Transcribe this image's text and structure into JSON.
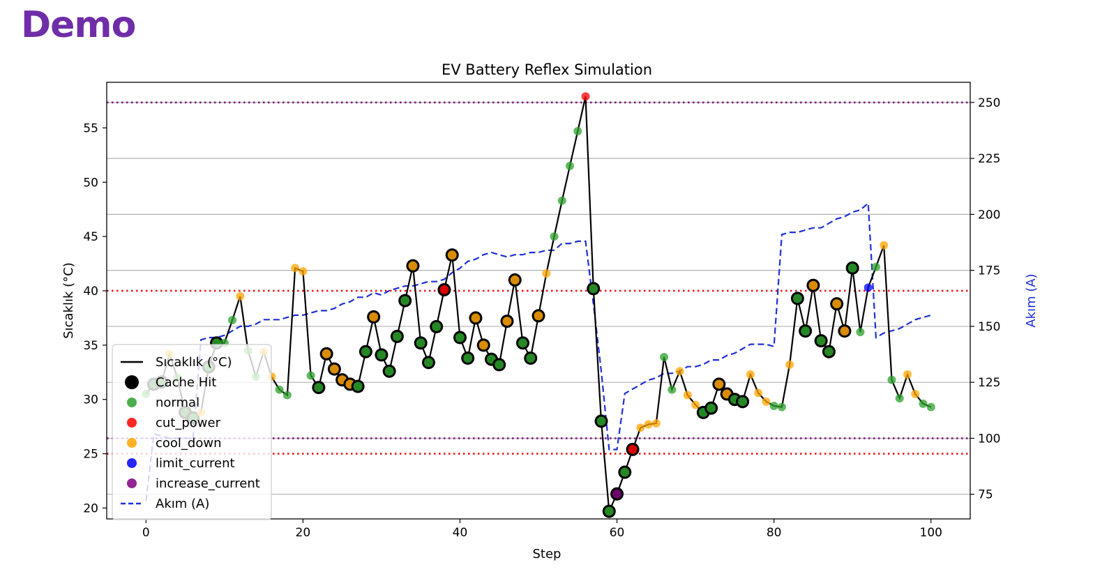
{
  "brand": {
    "logo_text": "Demo"
  },
  "chart_data": {
    "type": "line",
    "title": "EV Battery Reflex Simulation",
    "xlabel": "Step",
    "ylabel": "Sıcaklık (°C)",
    "y2label": "Akım (A)",
    "xlim": [
      -5,
      105
    ],
    "ylim": [
      19,
      59.2
    ],
    "y2lim": [
      64,
      259
    ],
    "xticks": [
      0,
      20,
      40,
      60,
      80,
      100
    ],
    "yticks": [
      20,
      25,
      30,
      35,
      40,
      45,
      50,
      55
    ],
    "y2ticks": [
      75,
      100,
      125,
      150,
      175,
      200,
      225,
      250
    ],
    "grid_y2": true,
    "legend_position": "lower-left",
    "temperature_hlines": [
      {
        "value": 40,
        "color": "#e8141a",
        "style": "dotted"
      },
      {
        "value": 25,
        "color": "#e8141a",
        "style": "dotted"
      }
    ],
    "current_hlines": [
      {
        "value": 250,
        "color": "#7a1a7a",
        "style": "dotted"
      },
      {
        "value": 100,
        "color": "#7a1a7a",
        "style": "dotted"
      }
    ],
    "temperature": {
      "name": "Sıcaklık (°C)",
      "x": [
        0,
        1,
        2,
        3,
        4,
        5,
        6,
        7,
        8,
        9,
        10,
        11,
        12,
        13,
        14,
        15,
        16,
        17,
        18,
        19,
        20,
        21,
        22,
        23,
        24,
        25,
        26,
        27,
        28,
        29,
        30,
        31,
        32,
        33,
        34,
        35,
        36,
        37,
        38,
        39,
        40,
        41,
        42,
        43,
        44,
        45,
        46,
        47,
        48,
        49,
        50,
        51,
        52,
        53,
        54,
        55,
        56,
        57,
        58,
        59,
        60,
        61,
        62,
        63,
        64,
        65,
        66,
        67,
        68,
        69,
        70,
        71,
        72,
        73,
        74,
        75,
        76,
        77,
        78,
        79,
        80,
        81,
        82,
        83,
        84,
        85,
        86,
        87,
        88,
        89,
        90,
        91,
        92,
        93,
        94,
        95,
        96,
        97,
        98,
        99,
        100
      ],
      "y": [
        30.5,
        31.4,
        31.6,
        34.2,
        32.0,
        28.8,
        28.3,
        28.8,
        33.0,
        35.2,
        35.2,
        37.3,
        39.5,
        34.5,
        32.1,
        34.4,
        32.1,
        30.9,
        30.4,
        42.1,
        41.8,
        32.2,
        31.1,
        34.2,
        32.8,
        31.8,
        31.4,
        31.2,
        34.4,
        37.6,
        34.1,
        32.6,
        35.8,
        39.1,
        42.3,
        35.2,
        33.4,
        36.7,
        40.1,
        43.3,
        35.7,
        33.8,
        37.5,
        35.0,
        33.7,
        33.2,
        37.2,
        41.0,
        35.2,
        33.8,
        37.7,
        41.6,
        45.0,
        48.3,
        51.5,
        54.7,
        57.9,
        40.2,
        28.0,
        19.7,
        21.3,
        23.3,
        25.4,
        27.4,
        27.7,
        27.8,
        33.9,
        30.9,
        32.6,
        30.4,
        29.5,
        28.8,
        29.2,
        31.4,
        30.5,
        30.0,
        29.8,
        32.3,
        30.6,
        29.8,
        29.4,
        29.3,
        33.2,
        39.3,
        36.3,
        40.5,
        35.4,
        34.4,
        38.8,
        36.3,
        42.1,
        36.2,
        40.3,
        42.2,
        44.2,
        31.8,
        30.1,
        32.3,
        30.5,
        29.6,
        29.3
      ]
    },
    "current": {
      "name": "Akım (A)",
      "x": [
        0,
        1,
        2,
        3,
        4,
        5,
        6,
        7,
        8,
        9,
        10,
        11,
        12,
        13,
        14,
        15,
        16,
        17,
        18,
        19,
        20,
        21,
        22,
        23,
        24,
        25,
        26,
        27,
        28,
        29,
        30,
        31,
        32,
        33,
        34,
        35,
        36,
        37,
        38,
        39,
        40,
        41,
        42,
        43,
        44,
        45,
        46,
        47,
        48,
        49,
        50,
        51,
        52,
        53,
        54,
        55,
        56,
        57,
        58,
        59,
        60,
        61,
        62,
        63,
        64,
        65,
        66,
        67,
        68,
        69,
        70,
        71,
        72,
        73,
        74,
        75,
        76,
        77,
        78,
        79,
        80,
        81,
        82,
        83,
        84,
        85,
        86,
        87,
        88,
        89,
        90,
        91,
        92,
        93,
        94,
        95,
        96,
        97,
        98,
        99,
        100
      ],
      "y": [
        72,
        102,
        101,
        100,
        100,
        100,
        100,
        144,
        145,
        145,
        146,
        148,
        150,
        150,
        151,
        153,
        153,
        153,
        154,
        155,
        155,
        156,
        157,
        157,
        158,
        160,
        161,
        163,
        163,
        165,
        164,
        166,
        167,
        168,
        168,
        169,
        170,
        170,
        171,
        174,
        176,
        179,
        180,
        182,
        183,
        182,
        181,
        182,
        182,
        183,
        183,
        184,
        184,
        187,
        187,
        188,
        188,
        160,
        130,
        95,
        95,
        120,
        122,
        124,
        126,
        127,
        129,
        129,
        130,
        132,
        132,
        133,
        135,
        135,
        137,
        138,
        140,
        142,
        142,
        142,
        141,
        191,
        192,
        192,
        193,
        194,
        194,
        196,
        198,
        199,
        201,
        202,
        205,
        145,
        147,
        148,
        149,
        151,
        153,
        154,
        155
      ]
    },
    "categories": [
      {
        "name": "normal",
        "color": "#2ca02c",
        "x": [
          0,
          4,
          10,
          11,
          13,
          14,
          17,
          18,
          21,
          52,
          53,
          54,
          55,
          66,
          67,
          80,
          81,
          91,
          93,
          95,
          96,
          99,
          100
        ]
      },
      {
        "name": "cut_power",
        "color": "#ff0000",
        "x": [
          56
        ]
      },
      {
        "name": "cool_down",
        "color": "#ffa500",
        "x": [
          3,
          7,
          12,
          15,
          16,
          19,
          20,
          51,
          63,
          64,
          65,
          68,
          69,
          70,
          77,
          78,
          79,
          82,
          94,
          97,
          98
        ]
      },
      {
        "name": "limit_current",
        "color": "#0000ff",
        "x": [
          92
        ]
      },
      {
        "name": "increase_current",
        "color": "#800080",
        "x": []
      }
    ],
    "cache_hits": {
      "name": "Cache Hit",
      "points": [
        {
          "x": 1,
          "cat": "normal"
        },
        {
          "x": 2,
          "cat": "normal"
        },
        {
          "x": 5,
          "cat": "normal"
        },
        {
          "x": 6,
          "cat": "normal"
        },
        {
          "x": 8,
          "cat": "normal"
        },
        {
          "x": 9,
          "cat": "normal"
        },
        {
          "x": 22,
          "cat": "normal"
        },
        {
          "x": 23,
          "cat": "cool_down"
        },
        {
          "x": 24,
          "cat": "cool_down"
        },
        {
          "x": 25,
          "cat": "cool_down"
        },
        {
          "x": 26,
          "cat": "cool_down"
        },
        {
          "x": 27,
          "cat": "normal"
        },
        {
          "x": 28,
          "cat": "normal"
        },
        {
          "x": 29,
          "cat": "cool_down"
        },
        {
          "x": 30,
          "cat": "normal"
        },
        {
          "x": 31,
          "cat": "normal"
        },
        {
          "x": 32,
          "cat": "normal"
        },
        {
          "x": 33,
          "cat": "normal"
        },
        {
          "x": 34,
          "cat": "cool_down"
        },
        {
          "x": 35,
          "cat": "normal"
        },
        {
          "x": 36,
          "cat": "normal"
        },
        {
          "x": 37,
          "cat": "normal"
        },
        {
          "x": 38,
          "cat": "cut_power"
        },
        {
          "x": 39,
          "cat": "cool_down"
        },
        {
          "x": 40,
          "cat": "normal"
        },
        {
          "x": 41,
          "cat": "normal"
        },
        {
          "x": 42,
          "cat": "cool_down"
        },
        {
          "x": 43,
          "cat": "cool_down"
        },
        {
          "x": 44,
          "cat": "normal"
        },
        {
          "x": 45,
          "cat": "normal"
        },
        {
          "x": 46,
          "cat": "cool_down"
        },
        {
          "x": 47,
          "cat": "cool_down"
        },
        {
          "x": 48,
          "cat": "normal"
        },
        {
          "x": 49,
          "cat": "normal"
        },
        {
          "x": 50,
          "cat": "cool_down"
        },
        {
          "x": 57,
          "cat": "normal"
        },
        {
          "x": 58,
          "cat": "normal"
        },
        {
          "x": 59,
          "cat": "normal"
        },
        {
          "x": 60,
          "cat": "increase_current"
        },
        {
          "x": 61,
          "cat": "normal"
        },
        {
          "x": 62,
          "cat": "cut_power"
        },
        {
          "x": 71,
          "cat": "normal"
        },
        {
          "x": 72,
          "cat": "normal"
        },
        {
          "x": 73,
          "cat": "cool_down"
        },
        {
          "x": 74,
          "cat": "cool_down"
        },
        {
          "x": 75,
          "cat": "normal"
        },
        {
          "x": 76,
          "cat": "normal"
        },
        {
          "x": 83,
          "cat": "normal"
        },
        {
          "x": 84,
          "cat": "normal"
        },
        {
          "x": 85,
          "cat": "cool_down"
        },
        {
          "x": 86,
          "cat": "normal"
        },
        {
          "x": 87,
          "cat": "normal"
        },
        {
          "x": 88,
          "cat": "cool_down"
        },
        {
          "x": 89,
          "cat": "cool_down"
        },
        {
          "x": 90,
          "cat": "normal"
        }
      ]
    },
    "legend": [
      {
        "label": "Sıcaklık (°C)",
        "kind": "line",
        "color": "#000000"
      },
      {
        "label": "Cache Hit",
        "kind": "bigdot",
        "color": "#000000"
      },
      {
        "label": "normal",
        "kind": "dot",
        "color": "#2ca02c"
      },
      {
        "label": "cut_power",
        "kind": "dot",
        "color": "#ff0000"
      },
      {
        "label": "cool_down",
        "kind": "dot",
        "color": "#ffa500"
      },
      {
        "label": "limit_current",
        "kind": "dot",
        "color": "#0000ff"
      },
      {
        "label": "increase_current",
        "kind": "dot",
        "color": "#800080"
      },
      {
        "label": "Akım (A)",
        "kind": "dash",
        "color": "#1f2fd6"
      }
    ]
  }
}
